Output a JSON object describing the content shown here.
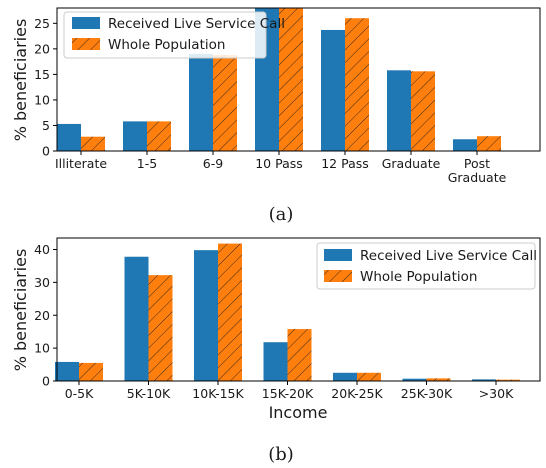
{
  "colors": {
    "series1": "#1f77b4",
    "series2": "#ff7f0e"
  },
  "chart_data": [
    {
      "type": "bar",
      "caption": "(a)",
      "categories": [
        "Illiterate",
        "1-5",
        "6-9",
        "10 Pass",
        "12 Pass",
        "Graduate",
        "Post\nGraduate"
      ],
      "series": [
        {
          "name": "Received Live Service Call",
          "values": [
            5.3,
            5.8,
            19.0,
            28.0,
            23.7,
            15.8,
            2.3
          ]
        },
        {
          "name": "Whole Population",
          "values": [
            2.8,
            5.8,
            18.8,
            28.0,
            26.0,
            15.6,
            2.9
          ]
        }
      ],
      "xlabel": "",
      "ylabel": "% beneficiaries",
      "yticks": [
        0,
        5,
        10,
        15,
        20,
        25
      ],
      "ylim": [
        0,
        28
      ],
      "legend": "top-left",
      "grid": false
    },
    {
      "type": "bar",
      "caption": "(b)",
      "categories": [
        "0-5K",
        "5K-10K",
        "10K-15K",
        "15K-20K",
        "20K-25K",
        "25K-30K",
        ">30K"
      ],
      "series": [
        {
          "name": "Received Live Service Call",
          "values": [
            5.8,
            37.8,
            39.8,
            11.8,
            2.5,
            0.7,
            0.5
          ]
        },
        {
          "name": "Whole Population",
          "values": [
            5.5,
            32.2,
            41.8,
            15.8,
            2.5,
            0.8,
            0.4
          ]
        }
      ],
      "xlabel": "Income",
      "ylabel": "% beneficiaries",
      "yticks": [
        0,
        10,
        20,
        30,
        40
      ],
      "ylim": [
        0,
        43.5
      ],
      "legend": "top-right",
      "grid": false
    }
  ]
}
